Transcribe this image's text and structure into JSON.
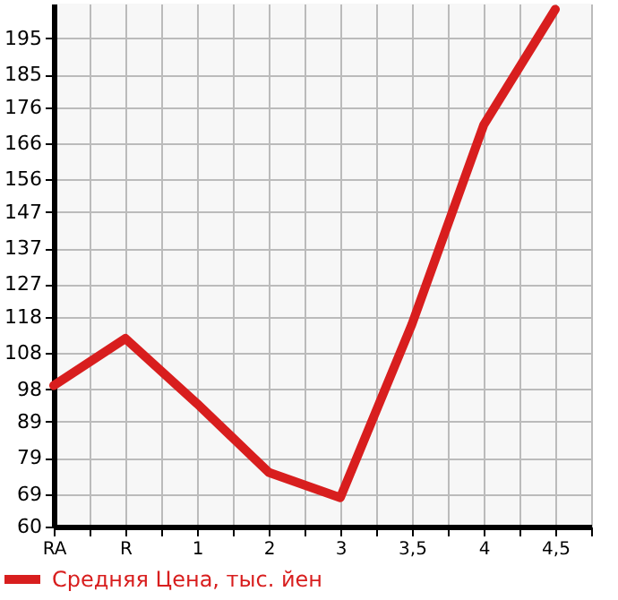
{
  "chart_data": {
    "type": "line",
    "categories": [
      "RA",
      "R",
      "1",
      "2",
      "3",
      "3,5",
      "4",
      "4,5"
    ],
    "series": [
      {
        "name": "Средняя Цена, тыс. йен",
        "color": "#d81e1e",
        "values": [
          99,
          112,
          94,
          75,
          68,
          116,
          171,
          203
        ]
      }
    ],
    "ylim": [
      60,
      204.6
    ],
    "yticks": [
      60,
      69,
      79,
      89,
      98,
      108,
      118,
      127,
      137,
      147,
      156,
      166,
      176,
      185,
      195
    ],
    "grid": true,
    "legend": "bottom left",
    "marker": "none",
    "line_style": "solid"
  }
}
